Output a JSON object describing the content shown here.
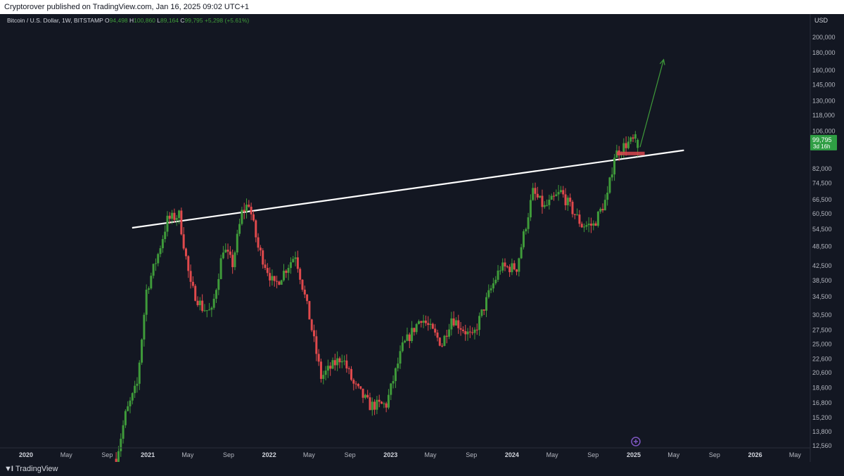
{
  "header": {
    "published_text": "Cryptorover published on TradingView.com, Jan 16, 2025 09:02 UTC+1"
  },
  "legend": {
    "symbol": "Bitcoin / U.S. Dollar, 1W, BITSTAMP",
    "open_label": "O",
    "open_value": "94,498",
    "high_label": "H",
    "high_value": "100,860",
    "low_label": "L",
    "low_value": "89,164",
    "close_label": "C",
    "close_value": "99,795",
    "change": "+5,298 (+5.61%)"
  },
  "price_axis": {
    "currency": "USD",
    "ticks": [
      "200,000",
      "180,000",
      "160,000",
      "145,000",
      "130,000",
      "118,000",
      "106,000",
      "82,000",
      "74,500",
      "66,500",
      "60,500",
      "54,500",
      "48,500",
      "42,500",
      "38,500",
      "34,500",
      "30,500",
      "27,500",
      "25,000",
      "22,600",
      "20,600",
      "18,600",
      "16,800",
      "15,200",
      "13,800",
      "12,560"
    ],
    "last_price": "99,795",
    "countdown": "3d 16h"
  },
  "time_axis": {
    "labels": [
      "2020",
      "May",
      "Sep",
      "2021",
      "May",
      "Sep",
      "2022",
      "May",
      "Sep",
      "2023",
      "May",
      "Sep",
      "2024",
      "May",
      "Sep",
      "2025",
      "May",
      "Sep",
      "2026",
      "May"
    ]
  },
  "footer": {
    "brand": "TradingView"
  },
  "colors": {
    "background": "#131722",
    "up": "#26a69a",
    "up_candle": "#3f9b3a",
    "down_candle": "#e0494c",
    "trendline": "#ffffff",
    "projection_arrow": "#3f9b3a",
    "price_label_bg": "#2f9e44",
    "support_zone": "#d9474f"
  },
  "chart_data": {
    "type": "candlestick",
    "title": "Bitcoin / U.S. Dollar, 1W, BITSTAMP",
    "ylabel": "USD",
    "y_scale": "log",
    "ylim": [
      12560,
      200000
    ],
    "x_range": [
      "2019-12",
      "2026-06"
    ],
    "last_candle": {
      "date": "2025-01-13",
      "open": 94498,
      "high": 100860,
      "low": 89164,
      "close": 99795
    },
    "approx_weekly_closes": [
      {
        "date": "2020-10-05",
        "close": 11500
      },
      {
        "date": "2020-11-02",
        "close": 15500
      },
      {
        "date": "2020-12-07",
        "close": 19000
      },
      {
        "date": "2021-01-04",
        "close": 36000
      },
      {
        "date": "2021-02-08",
        "close": 46000
      },
      {
        "date": "2021-03-08",
        "close": 58000
      },
      {
        "date": "2021-04-12",
        "close": 60000
      },
      {
        "date": "2021-05-17",
        "close": 37000
      },
      {
        "date": "2021-06-21",
        "close": 32000
      },
      {
        "date": "2021-07-19",
        "close": 31000
      },
      {
        "date": "2021-08-23",
        "close": 48000
      },
      {
        "date": "2021-09-20",
        "close": 43000
      },
      {
        "date": "2021-10-18",
        "close": 61000
      },
      {
        "date": "2021-11-08",
        "close": 65000
      },
      {
        "date": "2021-12-06",
        "close": 48000
      },
      {
        "date": "2022-01-24",
        "close": 37000
      },
      {
        "date": "2022-03-28",
        "close": 46000
      },
      {
        "date": "2022-05-09",
        "close": 30000
      },
      {
        "date": "2022-06-13",
        "close": 20000
      },
      {
        "date": "2022-08-15",
        "close": 23000
      },
      {
        "date": "2022-09-19",
        "close": 19000
      },
      {
        "date": "2022-11-07",
        "close": 16500
      },
      {
        "date": "2022-12-26",
        "close": 16600
      },
      {
        "date": "2023-02-13",
        "close": 24500
      },
      {
        "date": "2023-04-10",
        "close": 30000
      },
      {
        "date": "2023-06-12",
        "close": 25000
      },
      {
        "date": "2023-07-10",
        "close": 30000
      },
      {
        "date": "2023-09-11",
        "close": 26000
      },
      {
        "date": "2023-10-30",
        "close": 35000
      },
      {
        "date": "2023-12-04",
        "close": 42000
      },
      {
        "date": "2024-01-22",
        "close": 42000
      },
      {
        "date": "2024-03-11",
        "close": 70000
      },
      {
        "date": "2024-04-15",
        "close": 63000
      },
      {
        "date": "2024-06-03",
        "close": 70000
      },
      {
        "date": "2024-08-05",
        "close": 56000
      },
      {
        "date": "2024-09-09",
        "close": 56000
      },
      {
        "date": "2024-10-21",
        "close": 68000
      },
      {
        "date": "2024-11-11",
        "close": 90000
      },
      {
        "date": "2024-12-16",
        "close": 97000
      },
      {
        "date": "2025-01-13",
        "close": 99795
      }
    ],
    "annotations": [
      {
        "type": "trendline",
        "from": {
          "date": "2020-11-15",
          "price": 55000
        },
        "to": {
          "date": "2025-06-01",
          "price": 93000
        }
      },
      {
        "type": "arrow",
        "from": {
          "date": "2025-01-20",
          "price": 95000
        },
        "to": {
          "date": "2025-04-01",
          "price": 172000
        }
      },
      {
        "type": "support_zone",
        "from_date": "2024-11-11",
        "to_date": "2025-02-03",
        "price": 91000
      }
    ]
  }
}
